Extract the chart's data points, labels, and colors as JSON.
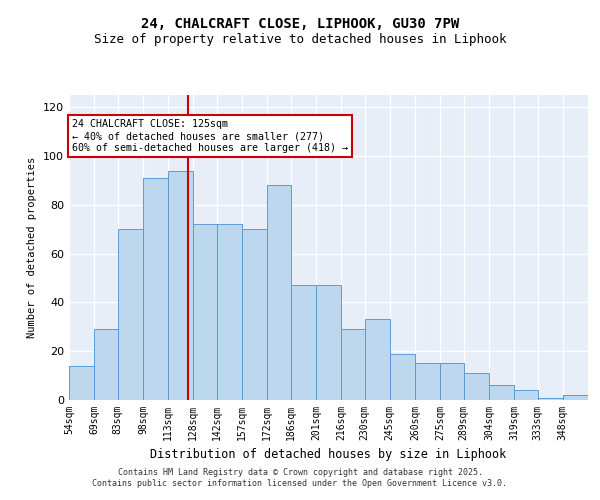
{
  "title1": "24, CHALCRAFT CLOSE, LIPHOOK, GU30 7PW",
  "title2": "Size of property relative to detached houses in Liphook",
  "xlabel": "Distribution of detached houses by size in Liphook",
  "ylabel": "Number of detached properties",
  "categories": [
    "54sqm",
    "69sqm",
    "83sqm",
    "98sqm",
    "113sqm",
    "128sqm",
    "142sqm",
    "157sqm",
    "172sqm",
    "186sqm",
    "201sqm",
    "216sqm",
    "230sqm",
    "245sqm",
    "260sqm",
    "275sqm",
    "289sqm",
    "304sqm",
    "319sqm",
    "333sqm",
    "348sqm"
  ],
  "hist_values": [
    14,
    29,
    70,
    91,
    94,
    72,
    72,
    70,
    88,
    47,
    47,
    29,
    33,
    19,
    15,
    15,
    11,
    6,
    4,
    1,
    2
  ],
  "bar_color": "#BDD7EE",
  "bar_edge_color": "#5B9BD5",
  "vline_x": 125,
  "vline_color": "#CC0000",
  "annotation_text": "24 CHALCRAFT CLOSE: 125sqm\n← 40% of detached houses are smaller (277)\n60% of semi-detached houses are larger (418) →",
  "annotation_box_color": "#CC0000",
  "ylim": [
    0,
    125
  ],
  "yticks": [
    0,
    20,
    40,
    60,
    80,
    100,
    120
  ],
  "footer1": "Contains HM Land Registry data © Crown copyright and database right 2025.",
  "footer2": "Contains public sector information licensed under the Open Government Licence v3.0.",
  "bg_color": "#E8EEF8",
  "grid_color": "#FFFFFF",
  "bin_edges": [
    54,
    69,
    83,
    98,
    113,
    128,
    142,
    157,
    172,
    186,
    201,
    216,
    230,
    245,
    260,
    275,
    289,
    304,
    319,
    333,
    348,
    363
  ]
}
